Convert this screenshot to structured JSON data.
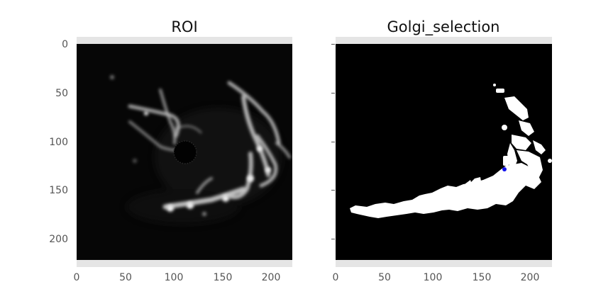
{
  "panels": [
    {
      "title": "ROI",
      "x_ticks": [
        "0",
        "50",
        "100",
        "150",
        "200"
      ],
      "y_ticks": [
        "0",
        "50",
        "100",
        "150",
        "200"
      ]
    },
    {
      "title": "Golgi_selection",
      "x_ticks": [
        "0",
        "50",
        "100",
        "150",
        "200"
      ],
      "y_ticks": []
    }
  ],
  "colors": {
    "frame": "#e5e5e5",
    "image_bg": "#000000",
    "mask": "#ffffff",
    "marker": "#1010ee"
  }
}
